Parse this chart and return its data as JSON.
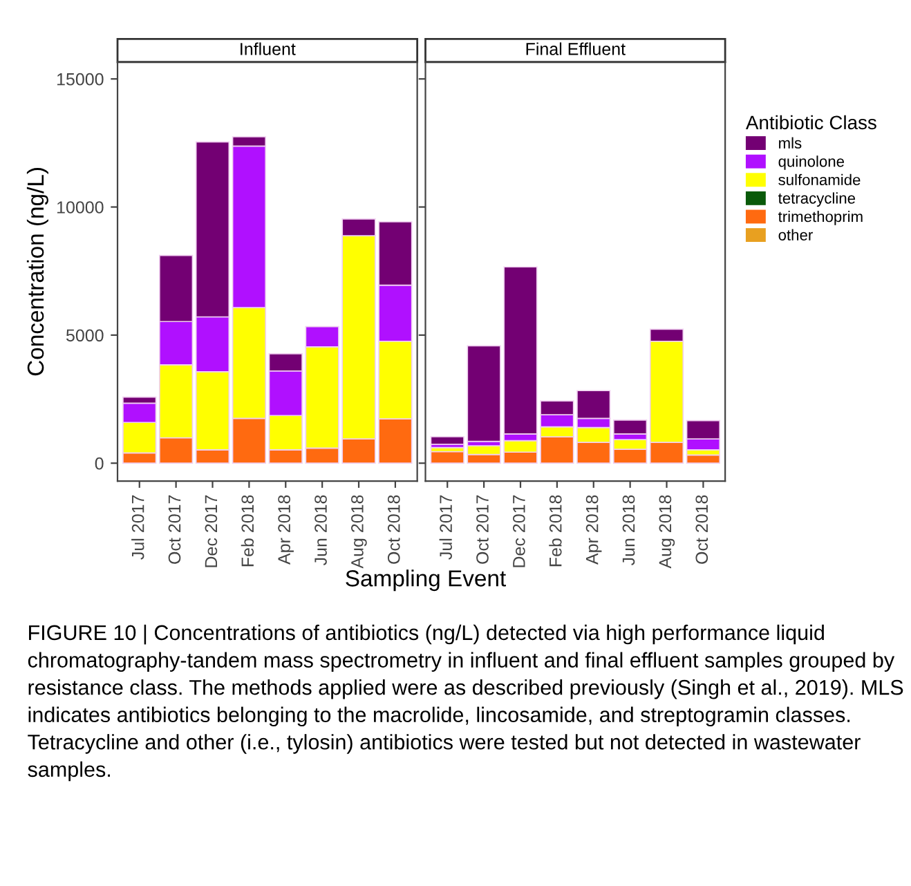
{
  "chart_data": [
    {
      "type": "bar",
      "stacked": true,
      "title": "Influent",
      "ylabel": "Concentration (ng/L)",
      "xlabel": "Sampling Event",
      "categories": [
        "Jul 2017",
        "Oct 2017",
        "Dec 2017",
        "Feb 2018",
        "Apr 2018",
        "Jun 2018",
        "Aug 2018",
        "Oct 2018"
      ],
      "series": [
        {
          "name": "other",
          "color": "#e8a020",
          "values": [
            0,
            0,
            0,
            0,
            0,
            0,
            0,
            0
          ]
        },
        {
          "name": "trimethoprim",
          "color": "#ff6a10",
          "values": [
            400,
            990,
            520,
            1750,
            520,
            590,
            950,
            1730
          ]
        },
        {
          "name": "tetracycline",
          "color": "#0a5a0a",
          "values": [
            0,
            0,
            0,
            0,
            0,
            0,
            0,
            0
          ]
        },
        {
          "name": "sulfonamide",
          "color": "#ffff00",
          "values": [
            1190,
            2850,
            3050,
            4320,
            1340,
            3950,
            7930,
            3030
          ]
        },
        {
          "name": "quinolone",
          "color": "#b010ff",
          "values": [
            750,
            1690,
            2140,
            6310,
            1740,
            790,
            0,
            2190
          ]
        },
        {
          "name": "mls",
          "color": "#730073",
          "values": [
            240,
            2580,
            6830,
            360,
            670,
            0,
            650,
            2470
          ]
        }
      ],
      "ylim": [
        -700,
        15660
      ],
      "yticks": [
        0,
        5000,
        10000,
        15000
      ],
      "grid": false,
      "legend": "right",
      "legend_title": "Antibiotic Class",
      "annotations": [
        "FIGURE 10 | Concentrations of antibiotics (ng/L) detected via high performance liquid chromatography-tandem mass spectrometry in influent and final effluent samples grouped by resistance class. The methods applied were as described previously (Singh et al., 2019). MLS indicates antibiotics belonging to the macrolide, lincosamide, and streptogramin classes. Tetracycline and other (i.e., tylosin) antibiotics were tested but not detected in wastewater samples."
      ]
    },
    {
      "type": "bar",
      "stacked": true,
      "title": "Final Effluent",
      "categories": [
        "Jul 2017",
        "Oct 2017",
        "Dec 2017",
        "Feb 2018",
        "Apr 2018",
        "Jun 2018",
        "Aug 2018",
        "Oct 2018"
      ],
      "series": [
        {
          "color": "#e8a020",
          "values": [
            0,
            0,
            0,
            0,
            0,
            0,
            0,
            0
          ]
        },
        {
          "color": "#ff6a10",
          "values": [
            450,
            340,
            430,
            1030,
            810,
            540,
            810,
            320
          ]
        },
        {
          "color": "#0a5a0a",
          "values": [
            0,
            0,
            0,
            0,
            0,
            0,
            0,
            0
          ]
        },
        {
          "color": "#ffff00",
          "values": [
            160,
            340,
            450,
            390,
            580,
            380,
            3950,
            200
          ]
        },
        {
          "color": "#b010ff",
          "values": [
            130,
            170,
            260,
            470,
            360,
            220,
            0,
            430
          ]
        },
        {
          "color": "#730073",
          "values": [
            290,
            3730,
            6520,
            540,
            1080,
            540,
            470,
            710
          ]
        }
      ],
      "ylim": [
        -700,
        15660
      ],
      "yticks": [
        0,
        5000,
        10000,
        15000
      ],
      "grid": false,
      "tick_labels": "x"
    }
  ]
}
